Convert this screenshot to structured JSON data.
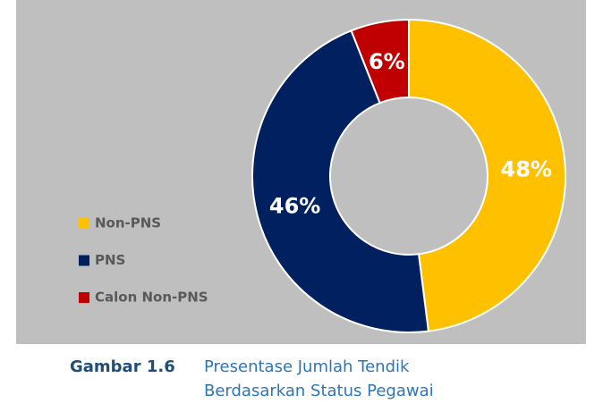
{
  "chart_data": {
    "type": "donut",
    "categories": [
      "Non-PNS",
      "PNS",
      "Calon Non-PNS"
    ],
    "values": [
      48,
      46,
      6
    ],
    "value_labels": [
      "48%",
      "46%",
      "6%"
    ],
    "colors": [
      "#ffc000",
      "#002060",
      "#c00000"
    ],
    "legend": "left"
  },
  "caption": {
    "label": "Gambar 1.6",
    "lines": [
      "Presentase Jumlah Tendik",
      "Berdasarkan Status Pegawai"
    ]
  }
}
